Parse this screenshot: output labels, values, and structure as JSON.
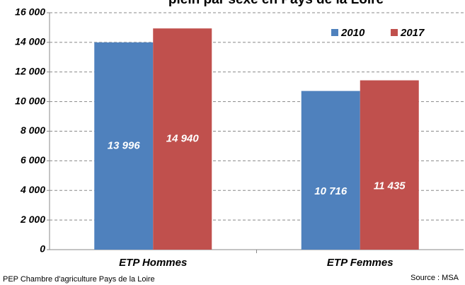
{
  "chart_data": {
    "type": "bar",
    "title": "plein par sexe en Pays de la Loire",
    "categories": [
      "ETP Hommes",
      "ETP Femmes"
    ],
    "series": [
      {
        "name": "2010",
        "color": "#4f81bd",
        "values": [
          13996,
          10716
        ],
        "value_labels": [
          "13 996",
          "10 716"
        ]
      },
      {
        "name": "2017",
        "color": "#c0504d",
        "values": [
          14940,
          11435
        ],
        "value_labels": [
          "14 940",
          "11 435"
        ]
      }
    ],
    "ylim": [
      0,
      16000
    ],
    "yticks": [
      {
        "value": 0,
        "label": "0"
      },
      {
        "value": 2000,
        "label": "2 000"
      },
      {
        "value": 4000,
        "label": "4 000"
      },
      {
        "value": 6000,
        "label": "6 000"
      },
      {
        "value": 8000,
        "label": "8 000"
      },
      {
        "value": 10000,
        "label": "10 000"
      },
      {
        "value": 12000,
        "label": "12 000"
      },
      {
        "value": 14000,
        "label": "14 000"
      },
      {
        "value": 16000,
        "label": "16 000"
      }
    ],
    "grid": true,
    "legend": "top-right",
    "footnote_left": "PEP Chambre d'agriculture Pays de la Loire",
    "footnote_right": "Source : MSA"
  }
}
